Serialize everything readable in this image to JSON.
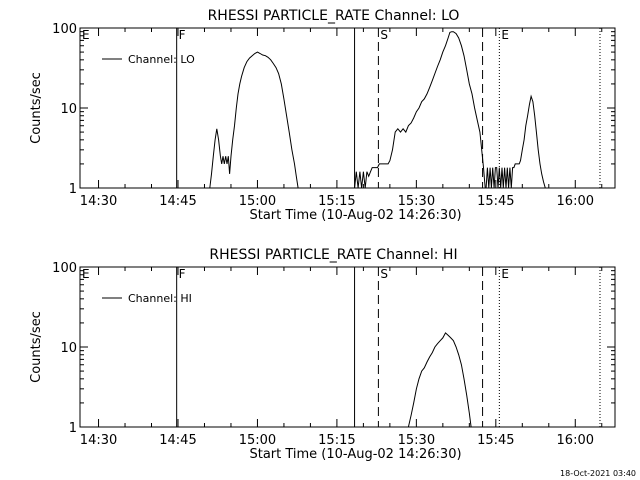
{
  "chart_data": [
    {
      "type": "line",
      "title": "RHESSI PARTICLE_RATE Channel: LO",
      "xlabel": "Start Time (10-Aug-02 14:26:30)",
      "ylabel": "Counts/sec",
      "yscale": "log",
      "ylim": [
        1,
        100
      ],
      "xlim": [
        "14:26:30",
        "16:07:30"
      ],
      "x_ticks": [
        "14:30",
        "14:45",
        "15:00",
        "15:15",
        "15:30",
        "15:45",
        "16:00"
      ],
      "y_ticks": [
        "1",
        "10",
        "100"
      ],
      "legend": {
        "position": "top-left",
        "label": "Channel: LO"
      },
      "markers": [
        {
          "label": "E",
          "time": "14:26:30",
          "style": "none"
        },
        {
          "label": "F",
          "time": "14:44:45",
          "style": "solid"
        },
        {
          "label": "",
          "time": "15:18:20",
          "style": "solid"
        },
        {
          "label": "S",
          "time": "15:22:50",
          "style": "dashed"
        },
        {
          "label": "",
          "time": "15:42:30",
          "style": "dashed"
        },
        {
          "label": "E",
          "time": "15:45:40",
          "style": "dotted"
        },
        {
          "label": "",
          "time": "16:04:40",
          "style": "dotted"
        }
      ],
      "series": [
        {
          "label": "Channel: LO",
          "segments": [
            {
              "t": [
                "14:51:00",
                "14:51:20",
                "14:51:40",
                "14:52:00",
                "14:52:20",
                "14:52:40",
                "14:53:00",
                "14:53:15",
                "14:53:30",
                "14:53:45",
                "14:54:00",
                "14:54:15",
                "14:54:30",
                "14:54:45",
                "14:55:00",
                "14:55:20",
                "14:55:40",
                "14:56:00",
                "14:56:20",
                "14:56:40",
                "14:57:00",
                "14:57:30",
                "14:58:00",
                "14:58:30",
                "14:59:00",
                "14:59:30",
                "15:00:00",
                "15:00:30",
                "15:01:00",
                "15:01:30",
                "15:02:00",
                "15:02:30",
                "15:03:00",
                "15:03:30",
                "15:04:00",
                "15:04:30",
                "15:05:00",
                "15:05:30",
                "15:06:00",
                "15:06:30",
                "15:07:00",
                "15:07:20",
                "15:07:40"
              ],
              "y": [
                1.0,
                1.5,
                2.5,
                4.0,
                5.5,
                4.0,
                2.5,
                2.0,
                2.5,
                2.0,
                2.5,
                2.0,
                2.5,
                1.5,
                2.5,
                4.0,
                6.0,
                10,
                15,
                20,
                25,
                32,
                38,
                42,
                45,
                48,
                50,
                48,
                46,
                45,
                43,
                40,
                36,
                32,
                27,
                20,
                13,
                8,
                5,
                3,
                2,
                1.4,
                1.0
              ]
            },
            {
              "t": [
                "15:18:20",
                "15:18:40",
                "15:19:00",
                "15:19:20",
                "15:19:40",
                "15:20:00",
                "15:20:20",
                "15:20:40",
                "15:21:00",
                "15:21:20",
                "15:21:40",
                "15:22:00",
                "15:22:20",
                "15:22:40",
                "15:23:00",
                "15:23:20",
                "15:23:40",
                "15:24:00",
                "15:24:20",
                "15:24:40",
                "15:25:00",
                "15:25:30",
                "15:26:00",
                "15:26:30",
                "15:27:00",
                "15:27:30",
                "15:28:00",
                "15:28:30",
                "15:29:00",
                "15:29:30",
                "15:30:00",
                "15:30:30",
                "15:31:00",
                "15:31:30",
                "15:32:00",
                "15:32:30",
                "15:33:00",
                "15:33:30",
                "15:34:00",
                "15:34:30",
                "15:35:00",
                "15:35:30",
                "15:36:00",
                "15:36:20",
                "15:36:40",
                "15:37:00",
                "15:37:30",
                "15:38:00",
                "15:38:30",
                "15:39:00",
                "15:39:30",
                "15:40:00",
                "15:40:30",
                "15:41:00",
                "15:41:30",
                "15:42:00",
                "15:42:20",
                "15:42:40",
                "15:43:00"
              ],
              "y": [
                1.0,
                1.6,
                1.0,
                1.6,
                1.0,
                1.6,
                1.0,
                1.6,
                1.4,
                1.6,
                1.8,
                1.8,
                1.8,
                1.8,
                2.0,
                2.0,
                2.0,
                2.0,
                2.0,
                2.0,
                2.2,
                3.0,
                5.0,
                5.5,
                5.0,
                5.5,
                5.0,
                6.0,
                6.5,
                7.5,
                9.0,
                10,
                12,
                13,
                15,
                18,
                22,
                27,
                33,
                40,
                50,
                60,
                75,
                88,
                90,
                90,
                85,
                75,
                60,
                45,
                30,
                20,
                15,
                10,
                7,
                5,
                3,
                1.8,
                1.0
              ]
            },
            {
              "t": [
                "15:43:10",
                "15:43:25",
                "15:43:40",
                "15:43:55",
                "15:44:10",
                "15:44:25",
                "15:44:40",
                "15:44:55",
                "15:45:10",
                "15:45:25",
                "15:45:40",
                "15:45:55",
                "15:46:10",
                "15:46:25",
                "15:46:40",
                "15:46:55",
                "15:47:10",
                "15:47:25",
                "15:47:40",
                "15:47:55",
                "15:48:10",
                "15:48:25",
                "15:48:40",
                "15:48:55",
                "15:49:10",
                "15:49:25",
                "15:49:40",
                "15:50:00",
                "15:50:20",
                "15:50:40",
                "15:51:00",
                "15:51:20",
                "15:51:40",
                "15:52:00",
                "15:52:20",
                "15:52:40",
                "15:53:00",
                "15:53:20",
                "15:53:40",
                "15:54:00",
                "15:54:20"
              ],
              "y": [
                1.0,
                1.8,
                1.0,
                1.8,
                1.0,
                1.8,
                1.0,
                1.8,
                1.8,
                1.0,
                1.8,
                1.0,
                1.8,
                1.0,
                1.8,
                1.0,
                1.8,
                1.0,
                1.8,
                1.0,
                1.8,
                1.8,
                2.0,
                2.0,
                2.0,
                2.0,
                2.2,
                3.0,
                4.0,
                6.0,
                8.0,
                11,
                14,
                12,
                8,
                5,
                3,
                2,
                1.5,
                1.2,
                1.0
              ]
            }
          ]
        }
      ]
    },
    {
      "type": "line",
      "title": "RHESSI PARTICLE_RATE Channel: HI",
      "xlabel": "Start Time (10-Aug-02 14:26:30)",
      "ylabel": "Counts/sec",
      "yscale": "log",
      "ylim": [
        1,
        100
      ],
      "xlim": [
        "14:26:30",
        "16:07:30"
      ],
      "x_ticks": [
        "14:30",
        "14:45",
        "15:00",
        "15:15",
        "15:30",
        "15:45",
        "16:00"
      ],
      "y_ticks": [
        "1",
        "10",
        "100"
      ],
      "legend": {
        "position": "top-left",
        "label": "Channel: HI"
      },
      "markers": [
        {
          "label": "E",
          "time": "14:26:30",
          "style": "none"
        },
        {
          "label": "F",
          "time": "14:44:45",
          "style": "solid"
        },
        {
          "label": "",
          "time": "15:18:20",
          "style": "solid"
        },
        {
          "label": "S",
          "time": "15:22:50",
          "style": "dashed"
        },
        {
          "label": "",
          "time": "15:42:30",
          "style": "dashed"
        },
        {
          "label": "E",
          "time": "15:45:40",
          "style": "dotted"
        },
        {
          "label": "",
          "time": "16:04:40",
          "style": "dotted"
        }
      ],
      "series": [
        {
          "label": "Channel: HI",
          "segments": [
            {
              "t": [
                "15:28:30",
                "15:29:00",
                "15:29:30",
                "15:30:00",
                "15:30:30",
                "15:31:00",
                "15:31:30",
                "15:32:00",
                "15:32:30",
                "15:33:00",
                "15:33:30",
                "15:34:00",
                "15:34:30",
                "15:35:00",
                "15:35:30",
                "15:36:00",
                "15:36:30",
                "15:37:00",
                "15:37:30",
                "15:38:00",
                "15:38:30",
                "15:39:00",
                "15:39:30",
                "15:40:00",
                "15:40:20"
              ],
              "y": [
                1.0,
                1.4,
                2.0,
                3.0,
                4.0,
                5.0,
                5.5,
                6.5,
                7.5,
                8.5,
                10,
                11,
                12,
                13,
                15,
                14,
                13,
                12,
                10,
                8,
                6,
                4,
                2.5,
                1.5,
                1.0
              ]
            }
          ]
        }
      ]
    }
  ],
  "footer": {
    "timestamp": "18-Oct-2021 03:40"
  }
}
